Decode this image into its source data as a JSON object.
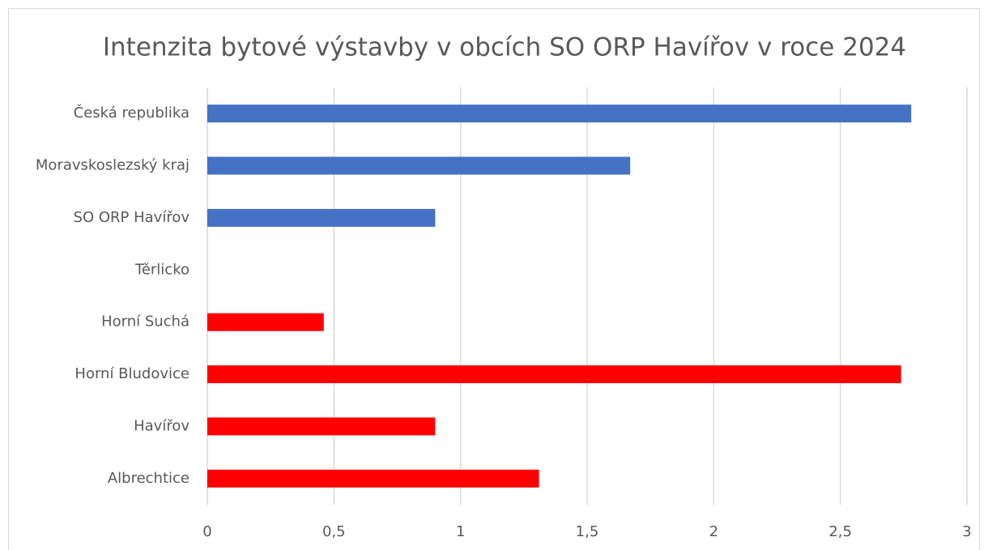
{
  "chart_data": {
    "type": "bar",
    "orientation": "horizontal",
    "title": "Intenzita bytové výstavby v obcích SO ORP Havířov v roce 2024",
    "categories": [
      "Česká republika",
      "Moravskoslezský kraj",
      "SO ORP Havířov",
      "Těrlicko",
      "Horní Suchá",
      "Horní Bludovice",
      "Havířov",
      "Albrechtice"
    ],
    "values": [
      2.78,
      1.67,
      0.9,
      0,
      0.46,
      2.74,
      0.9,
      1.31
    ],
    "colors": [
      "#4472c4",
      "#4472c4",
      "#4472c4",
      "#ff0000",
      "#ff0000",
      "#ff0000",
      "#ff0000",
      "#ff0000"
    ],
    "xlim": [
      0,
      3
    ],
    "xticks": [
      0,
      {
        "value": 0.5,
        "label": "0,5"
      },
      1,
      {
        "value": 1.5,
        "label": "1,5"
      },
      2,
      {
        "value": 2.5,
        "label": "2,5"
      },
      3
    ],
    "grid": true
  }
}
